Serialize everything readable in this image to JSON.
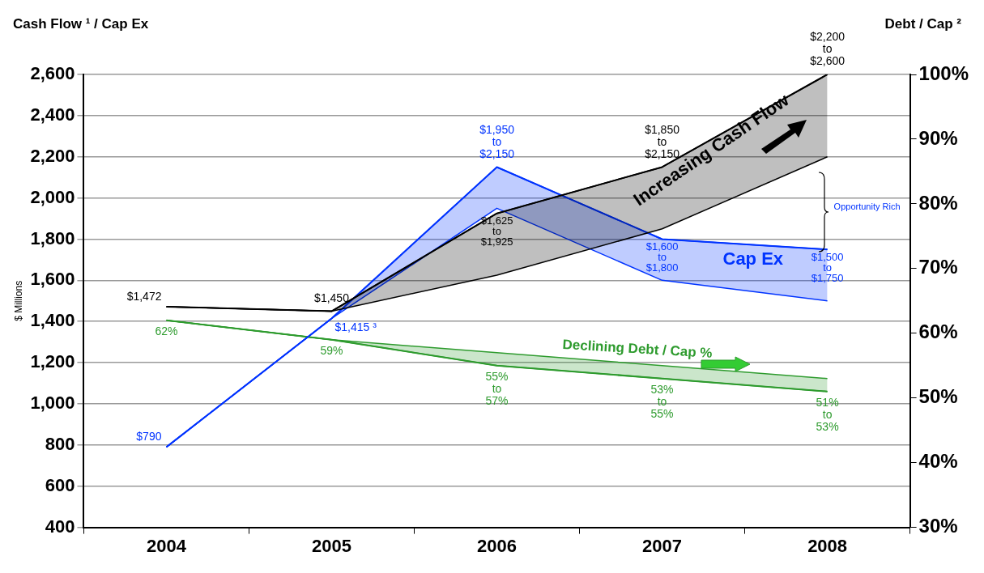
{
  "chart_data": {
    "type": "line",
    "ylabel": "$ Millions",
    "y2label": "Debt / Cap ²",
    "annotations": [
      "Cash Flow ¹ / Cap Ex",
      "Opportunity Rich"
    ],
    "categories": [
      "2004",
      "2005",
      "2006",
      "2007",
      "2008"
    ],
    "series": [
      {
        "name": "Increasing Cash Flow",
        "color": "#000000",
        "values": [
          1472,
          1450,
          1925,
          2150,
          2600
        ],
        "lower": [
          1472,
          1450,
          1625,
          1850,
          2200
        ],
        "upper": [
          1472,
          1450,
          1925,
          2150,
          2600
        ],
        "value_labels": [
          "$1,472",
          "$1,450",
          "$1,625\nto\n$1,925",
          "$1,850\nto\n$2,150",
          "$2,200\nto\n$2,600"
        ]
      },
      {
        "name": "Cap Ex",
        "color": "#0033ff",
        "values": [
          790,
          1415,
          2150,
          1800,
          1750
        ],
        "lower": [
          790,
          1415,
          1950,
          1600,
          1500
        ],
        "upper": [
          790,
          1415,
          2150,
          1800,
          1750
        ],
        "value_labels": [
          "$790",
          "$1,415 ³",
          "$1,950\nto\n$2,150",
          "$1,600\nto\n$1,800",
          "$1,500\nto\n$1,750"
        ]
      },
      {
        "name": "Declining Debt / Cap %",
        "color": "#2e9b2e",
        "axis": "y2",
        "values": [
          62,
          59,
          55,
          53,
          51
        ],
        "lower": [
          62,
          59,
          55,
          53,
          51
        ],
        "upper": [
          62,
          59,
          57,
          55,
          53
        ],
        "value_labels": [
          "62%",
          "59%",
          "55%\nto\n57%",
          "53%\nto\n55%",
          "51%\nto\n53%"
        ]
      }
    ],
    "ylim": [
      400,
      2600
    ],
    "yticks": [
      {
        "value": 400,
        "label": "400"
      },
      {
        "value": 600,
        "label": "600"
      },
      {
        "value": 800,
        "label": "800"
      },
      {
        "value": 1000,
        "label": "1,000"
      },
      {
        "value": 1200,
        "label": "1,200"
      },
      {
        "value": 1400,
        "label": "1,400"
      },
      {
        "value": 1600,
        "label": "1,600"
      },
      {
        "value": 1800,
        "label": "1,800"
      },
      {
        "value": 2000,
        "label": "2,000"
      },
      {
        "value": 2200,
        "label": "2,200"
      },
      {
        "value": 2400,
        "label": "2,400"
      },
      {
        "value": 2600,
        "label": "2,600"
      }
    ],
    "y2lim": [
      30,
      100
    ],
    "y2ticks": [
      {
        "value": 30,
        "label": "30%"
      },
      {
        "value": 40,
        "label": "40%"
      },
      {
        "value": 50,
        "label": "50%"
      },
      {
        "value": 60,
        "label": "60%"
      },
      {
        "value": 70,
        "label": "70%"
      },
      {
        "value": 80,
        "label": "80%"
      },
      {
        "value": 90,
        "label": "90%"
      },
      {
        "value": 100,
        "label": "100%"
      }
    ],
    "grid": "y",
    "legend": false
  }
}
